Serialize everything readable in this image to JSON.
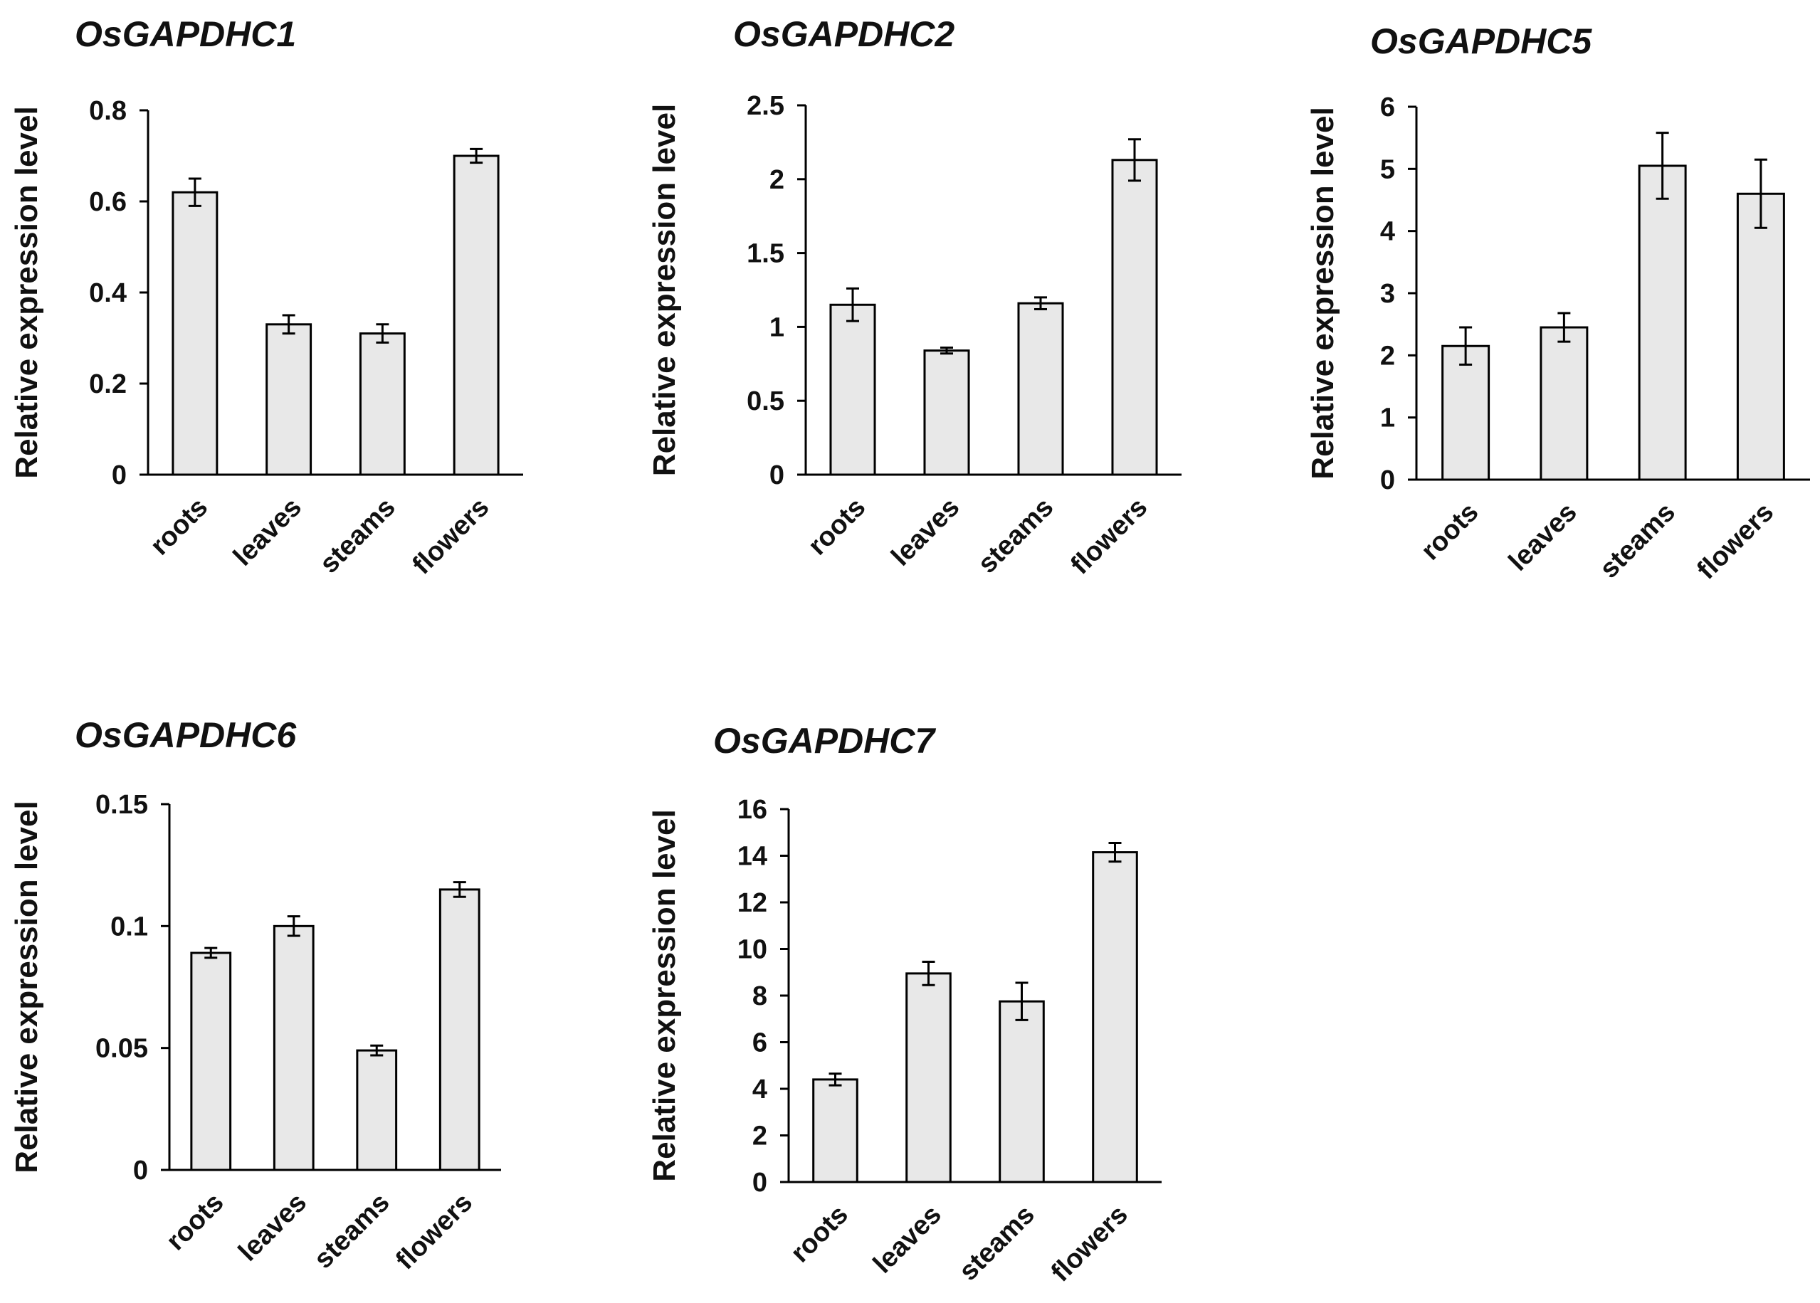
{
  "colors": {
    "bar_fill": "#e8e8e8",
    "bar_stroke": "#000000",
    "axis": "#000000",
    "text": "#111111"
  },
  "chart_data": [
    {
      "type": "bar",
      "title": "OsGAPDHC1",
      "ylabel": "Relative expression level",
      "xlabel": "",
      "categories": [
        "roots",
        "leaves",
        "steams",
        "flowers"
      ],
      "values": [
        0.62,
        0.33,
        0.31,
        0.7
      ],
      "errors": [
        0.03,
        0.02,
        0.02,
        0.015
      ],
      "ylim": [
        0,
        0.8
      ],
      "yticks": [
        0,
        0.2,
        0.4,
        0.6,
        0.8
      ],
      "ytick_labels": [
        "0",
        "0.2",
        "0.4",
        "0.6",
        "0.8"
      ],
      "grid": false
    },
    {
      "type": "bar",
      "title": "OsGAPDHC2",
      "ylabel": "Relative expression level",
      "xlabel": "",
      "categories": [
        "roots",
        "leaves",
        "steams",
        "flowers"
      ],
      "values": [
        1.15,
        0.84,
        1.16,
        2.13
      ],
      "errors": [
        0.11,
        0.02,
        0.04,
        0.14
      ],
      "ylim": [
        0,
        2.5
      ],
      "yticks": [
        0,
        0.5,
        1,
        1.5,
        2,
        2.5
      ],
      "ytick_labels": [
        "0",
        "0.5",
        "1",
        "1.5",
        "2",
        "2.5"
      ],
      "grid": false
    },
    {
      "type": "bar",
      "title": "OsGAPDHC5",
      "ylabel": "Relative expression level",
      "xlabel": "",
      "categories": [
        "roots",
        "leaves",
        "steams",
        "flowers"
      ],
      "values": [
        2.15,
        2.45,
        5.05,
        4.6
      ],
      "errors": [
        0.3,
        0.23,
        0.53,
        0.55
      ],
      "ylim": [
        0,
        6
      ],
      "yticks": [
        0,
        1,
        2,
        3,
        4,
        5,
        6
      ],
      "ytick_labels": [
        "0",
        "1",
        "2",
        "3",
        "4",
        "5",
        "6"
      ],
      "grid": false
    },
    {
      "type": "bar",
      "title": "OsGAPDHC6",
      "ylabel": "Relative expression level",
      "xlabel": "",
      "categories": [
        "roots",
        "leaves",
        "steams",
        "flowers"
      ],
      "values": [
        0.089,
        0.1,
        0.049,
        0.115
      ],
      "errors": [
        0.002,
        0.004,
        0.002,
        0.003
      ],
      "ylim": [
        0,
        0.15
      ],
      "yticks": [
        0,
        0.05,
        0.1,
        0.15
      ],
      "ytick_labels": [
        "0",
        "0.05",
        "0.1",
        "0.15"
      ],
      "grid": false
    },
    {
      "type": "bar",
      "title": "OsGAPDHC7",
      "ylabel": "Relative expression level",
      "xlabel": "",
      "categories": [
        "roots",
        "leaves",
        "steams",
        "flowers"
      ],
      "values": [
        4.4,
        8.95,
        7.75,
        14.15
      ],
      "errors": [
        0.25,
        0.5,
        0.8,
        0.4
      ],
      "ylim": [
        0,
        16
      ],
      "yticks": [
        0,
        2,
        4,
        6,
        8,
        10,
        12,
        14,
        16
      ],
      "ytick_labels": [
        "0",
        "2",
        "4",
        "6",
        "8",
        "10",
        "12",
        "14",
        "16"
      ],
      "grid": false
    }
  ]
}
